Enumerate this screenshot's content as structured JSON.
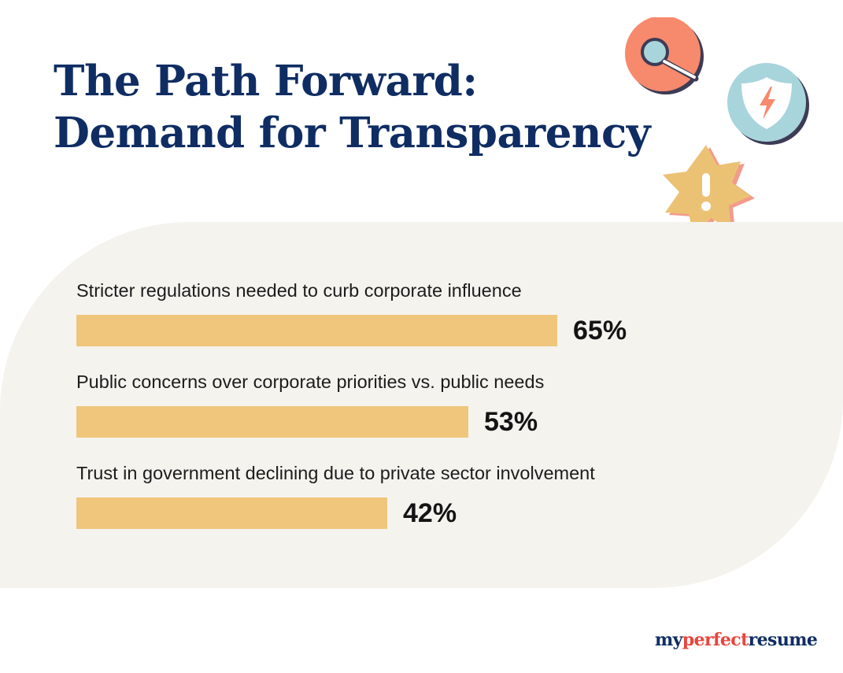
{
  "title_lines": [
    "The Path Forward:",
    "Demand for Transparency"
  ],
  "chart_data": {
    "type": "bar",
    "orientation": "horizontal",
    "title": "The Path Forward: Demand for Transparency",
    "categories": [
      "Stricter regulations needed to curb corporate influence",
      "Public concerns over corporate priorities vs. public needs",
      "Trust in government declining due to private sector involvement"
    ],
    "values": [
      65,
      53,
      42
    ],
    "value_labels": [
      "65%",
      "53%",
      "42%"
    ],
    "unit": "%",
    "xlim": [
      0,
      100
    ],
    "grid": false,
    "legend": "none",
    "bar_color": "#efc67c"
  },
  "icons": [
    "magnifier-icon",
    "shield-lightning-icon",
    "warning-star-icon"
  ],
  "colors": {
    "title": "#0f2d63",
    "bar": "#efc67c",
    "panel": "#f5f3ee",
    "coral": "#f7896d",
    "light_blue": "#a8d5dc",
    "gold": "#ebc274",
    "brand_red": "#e8453c"
  },
  "brand": {
    "part1": "my",
    "part2": "perfect",
    "part3": "resume"
  }
}
